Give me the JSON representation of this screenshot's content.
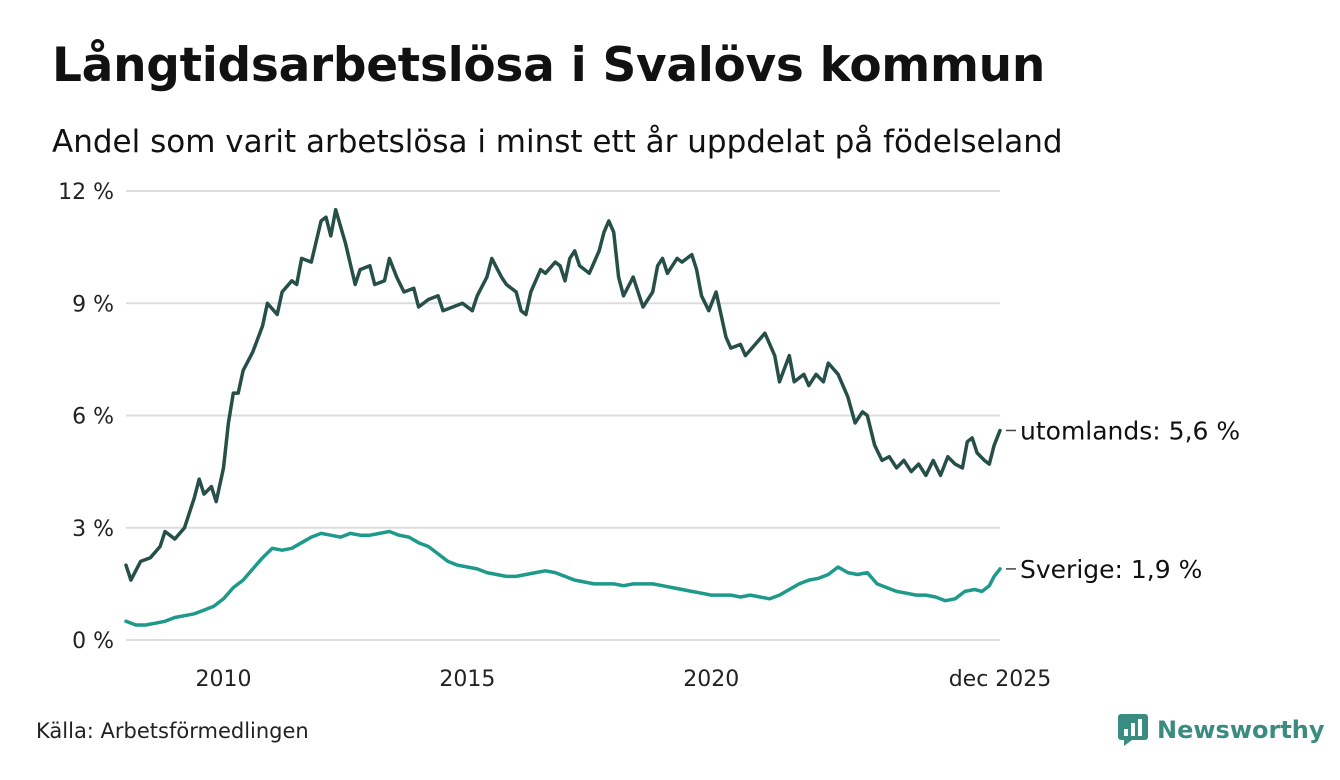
{
  "header": {
    "title": "Långtidsarbetslösa i Svalövs kommun",
    "subtitle": "Andel som varit arbetslösa i minst ett år uppdelat på födelseland"
  },
  "footer": {
    "source": "Källa: Arbetsförmedlingen",
    "brand": "Newsworthy"
  },
  "colors": {
    "utomlands": "#264f48",
    "sverige": "#1e9a8b",
    "grid": "#dddddd",
    "brand": "#3b8c80"
  },
  "chart_data": {
    "type": "line",
    "title": "Långtidsarbetslösa i Svalövs kommun",
    "subtitle": "Andel som varit arbetslösa i minst ett år uppdelat på födelseland",
    "xlabel": "",
    "ylabel": "",
    "xlim": [
      2008.0,
      2025.92
    ],
    "ylim": [
      0,
      12
    ],
    "yticks": [
      0,
      3,
      6,
      9,
      12
    ],
    "ytick_labels": [
      "0 %",
      "3 %",
      "6 %",
      "9 %",
      "12 %"
    ],
    "xticks": [
      2010,
      2015,
      2020,
      2025.92
    ],
    "xtick_labels": [
      "2010",
      "2015",
      "2020",
      "dec 2025"
    ],
    "grid": true,
    "legend": "end-labels",
    "series": [
      {
        "name": "utomlands",
        "end_label": "utomlands: 5,6 %",
        "points": [
          [
            2008.0,
            2.0
          ],
          [
            2008.1,
            1.6
          ],
          [
            2008.3,
            2.1
          ],
          [
            2008.5,
            2.2
          ],
          [
            2008.7,
            2.5
          ],
          [
            2008.8,
            2.9
          ],
          [
            2009.0,
            2.7
          ],
          [
            2009.2,
            3.0
          ],
          [
            2009.4,
            3.8
          ],
          [
            2009.5,
            4.3
          ],
          [
            2009.6,
            3.9
          ],
          [
            2009.75,
            4.1
          ],
          [
            2009.85,
            3.7
          ],
          [
            2010.0,
            4.6
          ],
          [
            2010.1,
            5.8
          ],
          [
            2010.2,
            6.6
          ],
          [
            2010.3,
            6.6
          ],
          [
            2010.4,
            7.2
          ],
          [
            2010.6,
            7.7
          ],
          [
            2010.8,
            8.4
          ],
          [
            2010.9,
            9.0
          ],
          [
            2011.1,
            8.7
          ],
          [
            2011.2,
            9.3
          ],
          [
            2011.4,
            9.6
          ],
          [
            2011.5,
            9.5
          ],
          [
            2011.6,
            10.2
          ],
          [
            2011.8,
            10.1
          ],
          [
            2012.0,
            11.2
          ],
          [
            2012.1,
            11.3
          ],
          [
            2012.2,
            10.8
          ],
          [
            2012.3,
            11.5
          ],
          [
            2012.5,
            10.6
          ],
          [
            2012.7,
            9.5
          ],
          [
            2012.8,
            9.9
          ],
          [
            2013.0,
            10.0
          ],
          [
            2013.1,
            9.5
          ],
          [
            2013.3,
            9.6
          ],
          [
            2013.4,
            10.2
          ],
          [
            2013.55,
            9.7
          ],
          [
            2013.7,
            9.3
          ],
          [
            2013.9,
            9.4
          ],
          [
            2014.0,
            8.9
          ],
          [
            2014.2,
            9.1
          ],
          [
            2014.4,
            9.2
          ],
          [
            2014.5,
            8.8
          ],
          [
            2014.7,
            8.9
          ],
          [
            2014.9,
            9.0
          ],
          [
            2015.1,
            8.8
          ],
          [
            2015.2,
            9.2
          ],
          [
            2015.4,
            9.7
          ],
          [
            2015.5,
            10.2
          ],
          [
            2015.7,
            9.7
          ],
          [
            2015.8,
            9.5
          ],
          [
            2015.9,
            9.4
          ],
          [
            2016.0,
            9.3
          ],
          [
            2016.1,
            8.8
          ],
          [
            2016.2,
            8.7
          ],
          [
            2016.3,
            9.3
          ],
          [
            2016.5,
            9.9
          ],
          [
            2016.6,
            9.8
          ],
          [
            2016.8,
            10.1
          ],
          [
            2016.9,
            10.0
          ],
          [
            2017.0,
            9.6
          ],
          [
            2017.1,
            10.2
          ],
          [
            2017.2,
            10.4
          ],
          [
            2017.3,
            10.0
          ],
          [
            2017.5,
            9.8
          ],
          [
            2017.7,
            10.4
          ],
          [
            2017.8,
            10.9
          ],
          [
            2017.9,
            11.2
          ],
          [
            2018.0,
            10.9
          ],
          [
            2018.1,
            9.7
          ],
          [
            2018.2,
            9.2
          ],
          [
            2018.4,
            9.7
          ],
          [
            2018.6,
            8.9
          ],
          [
            2018.8,
            9.3
          ],
          [
            2018.9,
            10.0
          ],
          [
            2019.0,
            10.2
          ],
          [
            2019.1,
            9.8
          ],
          [
            2019.3,
            10.2
          ],
          [
            2019.4,
            10.1
          ],
          [
            2019.6,
            10.3
          ],
          [
            2019.7,
            9.9
          ],
          [
            2019.8,
            9.2
          ],
          [
            2019.95,
            8.8
          ],
          [
            2020.1,
            9.3
          ],
          [
            2020.2,
            8.7
          ],
          [
            2020.3,
            8.1
          ],
          [
            2020.4,
            7.8
          ],
          [
            2020.6,
            7.9
          ],
          [
            2020.7,
            7.6
          ],
          [
            2020.9,
            7.9
          ],
          [
            2021.1,
            8.2
          ],
          [
            2021.3,
            7.6
          ],
          [
            2021.4,
            6.9
          ],
          [
            2021.6,
            7.6
          ],
          [
            2021.7,
            6.9
          ],
          [
            2021.9,
            7.1
          ],
          [
            2022.0,
            6.8
          ],
          [
            2022.15,
            7.1
          ],
          [
            2022.3,
            6.9
          ],
          [
            2022.4,
            7.4
          ],
          [
            2022.6,
            7.1
          ],
          [
            2022.8,
            6.5
          ],
          [
            2022.95,
            5.8
          ],
          [
            2023.1,
            6.1
          ],
          [
            2023.2,
            6.0
          ],
          [
            2023.35,
            5.2
          ],
          [
            2023.5,
            4.8
          ],
          [
            2023.65,
            4.9
          ],
          [
            2023.8,
            4.6
          ],
          [
            2023.95,
            4.8
          ],
          [
            2024.1,
            4.5
          ],
          [
            2024.25,
            4.7
          ],
          [
            2024.4,
            4.4
          ],
          [
            2024.55,
            4.8
          ],
          [
            2024.7,
            4.4
          ],
          [
            2024.85,
            4.9
          ],
          [
            2025.0,
            4.7
          ],
          [
            2025.15,
            4.6
          ],
          [
            2025.25,
            5.3
          ],
          [
            2025.35,
            5.4
          ],
          [
            2025.45,
            5.0
          ],
          [
            2025.6,
            4.8
          ],
          [
            2025.7,
            4.7
          ],
          [
            2025.8,
            5.2
          ],
          [
            2025.92,
            5.6
          ]
        ]
      },
      {
        "name": "Sverige",
        "end_label": "Sverige: 1,9 %",
        "points": [
          [
            2008.0,
            0.5
          ],
          [
            2008.2,
            0.4
          ],
          [
            2008.4,
            0.4
          ],
          [
            2008.6,
            0.45
          ],
          [
            2008.8,
            0.5
          ],
          [
            2009.0,
            0.6
          ],
          [
            2009.2,
            0.65
          ],
          [
            2009.4,
            0.7
          ],
          [
            2009.6,
            0.8
          ],
          [
            2009.8,
            0.9
          ],
          [
            2010.0,
            1.1
          ],
          [
            2010.2,
            1.4
          ],
          [
            2010.4,
            1.6
          ],
          [
            2010.6,
            1.9
          ],
          [
            2010.8,
            2.2
          ],
          [
            2011.0,
            2.45
          ],
          [
            2011.2,
            2.4
          ],
          [
            2011.4,
            2.45
          ],
          [
            2011.6,
            2.6
          ],
          [
            2011.8,
            2.75
          ],
          [
            2012.0,
            2.85
          ],
          [
            2012.2,
            2.8
          ],
          [
            2012.4,
            2.75
          ],
          [
            2012.6,
            2.85
          ],
          [
            2012.8,
            2.8
          ],
          [
            2013.0,
            2.8
          ],
          [
            2013.2,
            2.85
          ],
          [
            2013.4,
            2.9
          ],
          [
            2013.6,
            2.8
          ],
          [
            2013.8,
            2.75
          ],
          [
            2014.0,
            2.6
          ],
          [
            2014.2,
            2.5
          ],
          [
            2014.4,
            2.3
          ],
          [
            2014.6,
            2.1
          ],
          [
            2014.8,
            2.0
          ],
          [
            2015.0,
            1.95
          ],
          [
            2015.2,
            1.9
          ],
          [
            2015.4,
            1.8
          ],
          [
            2015.6,
            1.75
          ],
          [
            2015.8,
            1.7
          ],
          [
            2016.0,
            1.7
          ],
          [
            2016.2,
            1.75
          ],
          [
            2016.4,
            1.8
          ],
          [
            2016.6,
            1.85
          ],
          [
            2016.8,
            1.8
          ],
          [
            2017.0,
            1.7
          ],
          [
            2017.2,
            1.6
          ],
          [
            2017.4,
            1.55
          ],
          [
            2017.6,
            1.5
          ],
          [
            2017.8,
            1.5
          ],
          [
            2018.0,
            1.5
          ],
          [
            2018.2,
            1.45
          ],
          [
            2018.4,
            1.5
          ],
          [
            2018.6,
            1.5
          ],
          [
            2018.8,
            1.5
          ],
          [
            2019.0,
            1.45
          ],
          [
            2019.2,
            1.4
          ],
          [
            2019.4,
            1.35
          ],
          [
            2019.6,
            1.3
          ],
          [
            2019.8,
            1.25
          ],
          [
            2020.0,
            1.2
          ],
          [
            2020.2,
            1.2
          ],
          [
            2020.4,
            1.2
          ],
          [
            2020.6,
            1.15
          ],
          [
            2020.8,
            1.2
          ],
          [
            2021.0,
            1.15
          ],
          [
            2021.2,
            1.1
          ],
          [
            2021.4,
            1.2
          ],
          [
            2021.6,
            1.35
          ],
          [
            2021.8,
            1.5
          ],
          [
            2022.0,
            1.6
          ],
          [
            2022.2,
            1.65
          ],
          [
            2022.4,
            1.75
          ],
          [
            2022.6,
            1.95
          ],
          [
            2022.8,
            1.8
          ],
          [
            2023.0,
            1.75
          ],
          [
            2023.2,
            1.8
          ],
          [
            2023.4,
            1.5
          ],
          [
            2023.6,
            1.4
          ],
          [
            2023.8,
            1.3
          ],
          [
            2024.0,
            1.25
          ],
          [
            2024.2,
            1.2
          ],
          [
            2024.4,
            1.2
          ],
          [
            2024.6,
            1.15
          ],
          [
            2024.8,
            1.05
          ],
          [
            2025.0,
            1.1
          ],
          [
            2025.2,
            1.3
          ],
          [
            2025.4,
            1.35
          ],
          [
            2025.55,
            1.3
          ],
          [
            2025.7,
            1.45
          ],
          [
            2025.8,
            1.7
          ],
          [
            2025.92,
            1.9
          ]
        ]
      }
    ]
  }
}
